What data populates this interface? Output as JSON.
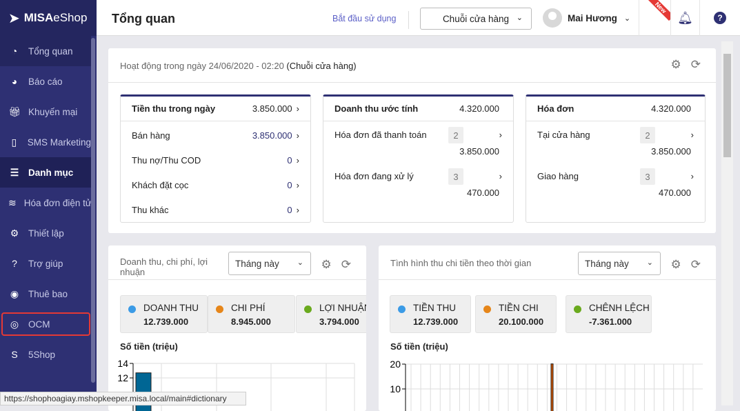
{
  "app": {
    "logo_text": "MISA",
    "logo_text2": "eShop"
  },
  "sidebar": {
    "items": [
      {
        "label": "Tổng quan",
        "icon": "dashboard-icon"
      },
      {
        "label": "Báo cáo",
        "icon": "pie-chart-icon"
      },
      {
        "label": "Khuyến mại",
        "icon": "gift-icon"
      },
      {
        "label": "SMS Marketing",
        "icon": "mobile-icon"
      },
      {
        "label": "Danh mục",
        "icon": "list-icon"
      },
      {
        "label": "Hóa đơn điện tử",
        "icon": "invoice-icon"
      },
      {
        "label": "Thiết lập",
        "icon": "gear-icon"
      },
      {
        "label": "Trợ giúp",
        "icon": "help-icon"
      },
      {
        "label": "Thuê bao",
        "icon": "user-icon"
      },
      {
        "label": "OCM",
        "icon": "ocm-icon"
      },
      {
        "label": "5Shop",
        "icon": "5shop-icon"
      }
    ]
  },
  "header": {
    "title": "Tổng quan",
    "start_link": "Bắt đầu sử dụng",
    "store_select": "Chuỗi cửa hàng",
    "user_name": "Mai Hương",
    "new_badge": "New"
  },
  "activity": {
    "title": "Hoạt động trong ngày 24/06/2020 - 02:20",
    "scope": "(Chuỗi cửa hàng)",
    "income": {
      "title": "Tiền thu trong ngày",
      "value": "3.850.000",
      "rows": [
        {
          "label": "Bán hàng",
          "value": "3.850.000"
        },
        {
          "label": "Thu nợ/Thu COD",
          "value": "0"
        },
        {
          "label": "Khách đặt cọc",
          "value": "0"
        },
        {
          "label": "Thu khác",
          "value": "0"
        }
      ]
    },
    "revenue": {
      "title": "Doanh thu ước tính",
      "value": "4.320.000",
      "rows": [
        {
          "label": "Hóa đơn đã thanh toán",
          "count": "2",
          "value": "3.850.000"
        },
        {
          "label": "Hóa đơn đang xử lý",
          "count": "3",
          "value": "470.000"
        }
      ]
    },
    "invoices": {
      "title": "Hóa đơn",
      "value": "4.320.000",
      "rows": [
        {
          "label": "Tại cửa hàng",
          "count": "2",
          "value": "3.850.000"
        },
        {
          "label": "Giao hàng",
          "count": "3",
          "value": "470.000"
        }
      ]
    }
  },
  "panel_left": {
    "title": "Doanh thu, chi phí, lợi nhuận",
    "period": "Tháng này",
    "legend": [
      {
        "name": "DOANH THU",
        "value": "12.739.000",
        "color": "#3b9be6"
      },
      {
        "name": "CHI PHÍ",
        "value": "8.945.000",
        "color": "#e6861a"
      },
      {
        "name": "LỢI NHUẬN",
        "value": "3.794.000",
        "color": "#6aaa1e"
      }
    ],
    "ylabel": "Số tiền (triệu)"
  },
  "panel_right": {
    "title": "Tình hình thu chi tiền theo thời gian",
    "period": "Tháng này",
    "legend": [
      {
        "name": "TIỀN THU",
        "value": "12.739.000",
        "color": "#3b9be6"
      },
      {
        "name": "TIỀN CHI",
        "value": "20.100.000",
        "color": "#e6861a"
      },
      {
        "name": "CHÊNH LỆCH",
        "value": "-7.361.000",
        "color": "#6aaa1e"
      }
    ],
    "ylabel": "Số tiền (triệu)"
  },
  "chart_data": [
    {
      "type": "bar",
      "ylabel": "Số tiền (triệu)",
      "yticks": [
        12,
        14
      ],
      "values": [
        12.7
      ],
      "bar_color": "#006694",
      "grid": true
    },
    {
      "type": "bar",
      "ylabel": "Số tiền (triệu)",
      "yticks": [
        10,
        20
      ],
      "values": [
        20.1
      ],
      "bar_color": "#d35400",
      "grid": true
    }
  ],
  "status_url": "https://shophoagiay.mshopkeeper.misa.local/main#dictionary"
}
